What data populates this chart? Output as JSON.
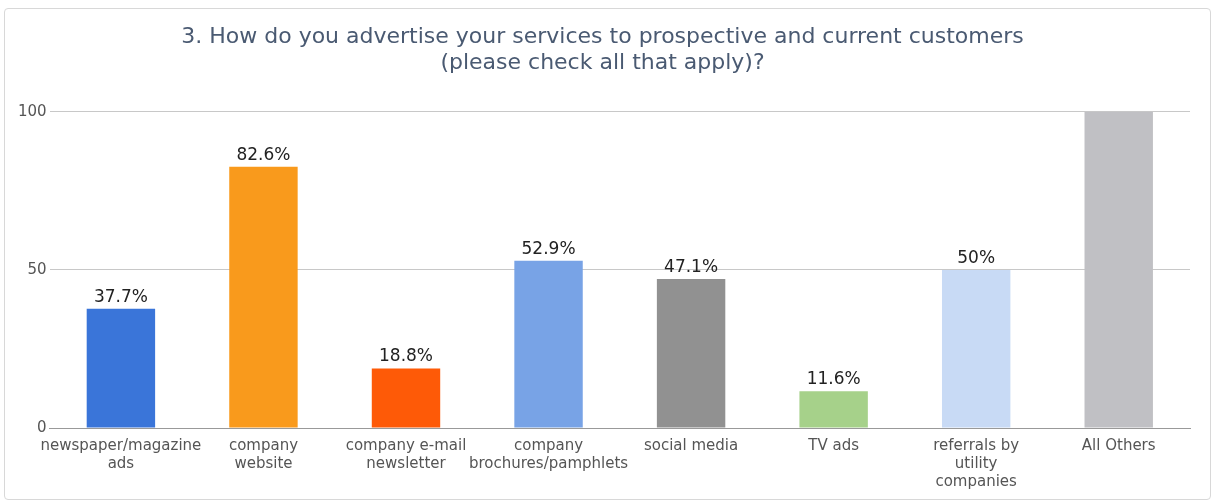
{
  "chart_data": {
    "type": "bar",
    "title": "3. How do you advertise your services to prospective and current customers (please check all that apply)?",
    "categories": [
      "newspaper/magazine ads",
      "company website",
      "company e-mail newsletter",
      "company brochures/pamphlets",
      "social media",
      "TV ads",
      "referrals by utility companies",
      "All Others"
    ],
    "values": [
      37.7,
      82.6,
      18.8,
      52.9,
      47.1,
      11.6,
      50,
      100
    ],
    "value_labels": [
      "37.7%",
      "82.6%",
      "18.8%",
      "52.9%",
      "47.1%",
      "11.6%",
      "50%",
      null
    ],
    "colors": [
      "#3a75d9",
      "#f99a1c",
      "#fe5a07",
      "#78a3e6",
      "#919191",
      "#a6d18a",
      "#c8daf5",
      "#c0c0c4"
    ],
    "ylim": [
      0,
      100
    ],
    "yticks": [
      0,
      50,
      100
    ],
    "grid": "y",
    "legend": false
  }
}
